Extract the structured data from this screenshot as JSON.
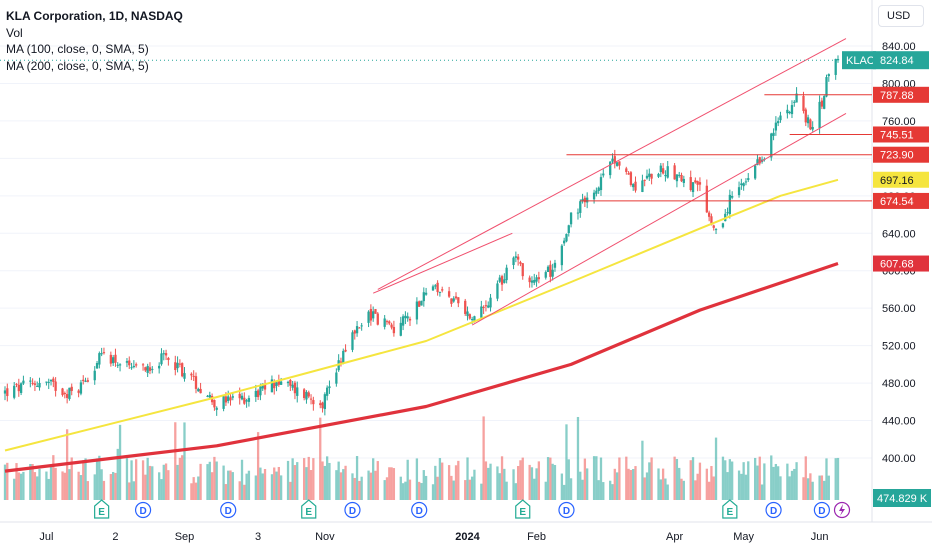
{
  "legend": {
    "title": "KLA Corporation, 1D, NASDAQ",
    "lines": [
      "Vol",
      "MA (100, close, 0, SMA, 5)",
      "MA (200, close, 0, SMA, 5)"
    ]
  },
  "currency": "USD",
  "colors": {
    "up": "#26a69a",
    "down": "#ef5350",
    "ma100": "#f5e53f",
    "ma200": "#e0323c",
    "channel": "#f0506e",
    "level": "#e53935",
    "grid": "#f0f3fa",
    "text": "#131722"
  },
  "chart_data": {
    "type": "candlestick",
    "title": "KLA Corporation, 1D, NASDAQ",
    "ylim": [
      380,
      860
    ],
    "y_ticks": [
      400,
      440,
      480,
      520,
      560,
      600,
      640,
      680,
      720,
      760,
      800,
      840
    ],
    "y_tick_labels": [
      "400.00",
      "440.00",
      "480.00",
      "520.00",
      "560.00",
      "600.00",
      "640.00",
      "680.00",
      "720.00",
      "760.00",
      "800.00",
      "840.00"
    ],
    "x_labels": [
      "Jul",
      "2",
      "Sep",
      "3",
      "Nov",
      "2024",
      "Feb",
      "Apr",
      "May",
      "Jun"
    ],
    "price_anchors": [
      {
        "date": "2023-06-15",
        "close": 470
      },
      {
        "date": "2023-07-01",
        "close": 482
      },
      {
        "date": "2023-07-15",
        "close": 468
      },
      {
        "date": "2023-07-28",
        "close": 512
      },
      {
        "date": "2023-08-10",
        "close": 492
      },
      {
        "date": "2023-08-25",
        "close": 508
      },
      {
        "date": "2023-09-05",
        "close": 482
      },
      {
        "date": "2023-09-15",
        "close": 458
      },
      {
        "date": "2023-09-29",
        "close": 465
      },
      {
        "date": "2023-10-11",
        "close": 482
      },
      {
        "date": "2023-10-20",
        "close": 472
      },
      {
        "date": "2023-10-31",
        "close": 460
      },
      {
        "date": "2023-11-10",
        "close": 520
      },
      {
        "date": "2023-11-20",
        "close": 555
      },
      {
        "date": "2023-12-01",
        "close": 538
      },
      {
        "date": "2023-12-08",
        "close": 552
      },
      {
        "date": "2023-12-15",
        "close": 580
      },
      {
        "date": "2023-12-22",
        "close": 578
      },
      {
        "date": "2024-01-04",
        "close": 548
      },
      {
        "date": "2024-01-12",
        "close": 565
      },
      {
        "date": "2024-01-22",
        "close": 618
      },
      {
        "date": "2024-01-29",
        "close": 588
      },
      {
        "date": "2024-02-07",
        "close": 600
      },
      {
        "date": "2024-02-16",
        "close": 658
      },
      {
        "date": "2024-02-28",
        "close": 690
      },
      {
        "date": "2024-03-07",
        "close": 722
      },
      {
        "date": "2024-03-14",
        "close": 690
      },
      {
        "date": "2024-03-27",
        "close": 710
      },
      {
        "date": "2024-04-03",
        "close": 702
      },
      {
        "date": "2024-04-12",
        "close": 685
      },
      {
        "date": "2024-04-19",
        "close": 638
      },
      {
        "date": "2024-04-26",
        "close": 680
      },
      {
        "date": "2024-05-03",
        "close": 695
      },
      {
        "date": "2024-05-10",
        "close": 725
      },
      {
        "date": "2024-05-17",
        "close": 765
      },
      {
        "date": "2024-05-24",
        "close": 785
      },
      {
        "date": "2024-05-30",
        "close": 752
      },
      {
        "date": "2024-06-04",
        "close": 780
      },
      {
        "date": "2024-06-07",
        "close": 815
      },
      {
        "date": "2024-06-11",
        "close": 825
      }
    ],
    "ma100_anchors": [
      {
        "date": "2023-06-15",
        "value": 408
      },
      {
        "date": "2023-09-15",
        "value": 465
      },
      {
        "date": "2023-10-20",
        "value": 488
      },
      {
        "date": "2023-12-15",
        "value": 525
      },
      {
        "date": "2024-02-16",
        "value": 588
      },
      {
        "date": "2024-04-12",
        "value": 645
      },
      {
        "date": "2024-05-17",
        "value": 680
      },
      {
        "date": "2024-06-11",
        "value": 697.16
      }
    ],
    "ma200_anchors": [
      {
        "date": "2023-06-15",
        "value": 386
      },
      {
        "date": "2023-09-15",
        "value": 413
      },
      {
        "date": "2023-12-15",
        "value": 455
      },
      {
        "date": "2024-02-16",
        "value": 500
      },
      {
        "date": "2024-04-12",
        "value": 558
      },
      {
        "date": "2024-06-11",
        "value": 607.68
      }
    ],
    "volume_note": "volume histogram in lower pane",
    "current_price": "824.84",
    "current_price_symbol": "KLAC",
    "levels": [
      {
        "value": 787.88,
        "label": "787.88",
        "from": "2024-05-10"
      },
      {
        "value": 745.51,
        "label": "745.51",
        "from": "2024-05-21"
      },
      {
        "value": 723.9,
        "label": "723.90",
        "from": "2024-02-14"
      },
      {
        "value": 674.54,
        "label": "674.54",
        "from": "2024-02-20"
      }
    ],
    "axis_labels": [
      {
        "value": 697.16,
        "label": "697.16",
        "series": "MA 100"
      },
      {
        "value": 607.68,
        "label": "607.68",
        "series": "MA 200"
      }
    ],
    "volume_label": "474.829 K",
    "channel": {
      "upper": [
        {
          "date": "2023-11-24",
          "value": 580
        },
        {
          "date": "2024-06-11",
          "value": 848
        }
      ],
      "lower": [
        {
          "date": "2024-01-04",
          "value": 542
        },
        {
          "date": "2024-06-11",
          "value": 768
        }
      ],
      "mid": [
        {
          "date": "2023-11-22",
          "value": 576
        },
        {
          "date": "2024-01-18",
          "value": 640
        }
      ]
    },
    "events": [
      {
        "date": "2023-07-27",
        "label": "E"
      },
      {
        "date": "2023-08-14",
        "label": "D"
      },
      {
        "date": "2023-09-20",
        "label": "D"
      },
      {
        "date": "2023-10-25",
        "label": "E"
      },
      {
        "date": "2023-11-13",
        "label": "D"
      },
      {
        "date": "2023-12-12",
        "label": "D"
      },
      {
        "date": "2024-01-26",
        "label": "E"
      },
      {
        "date": "2024-02-14",
        "label": "D"
      },
      {
        "date": "2024-04-25",
        "label": "E"
      },
      {
        "date": "2024-05-14",
        "label": "D"
      },
      {
        "date": "2024-06-04",
        "label": "D"
      }
    ]
  }
}
